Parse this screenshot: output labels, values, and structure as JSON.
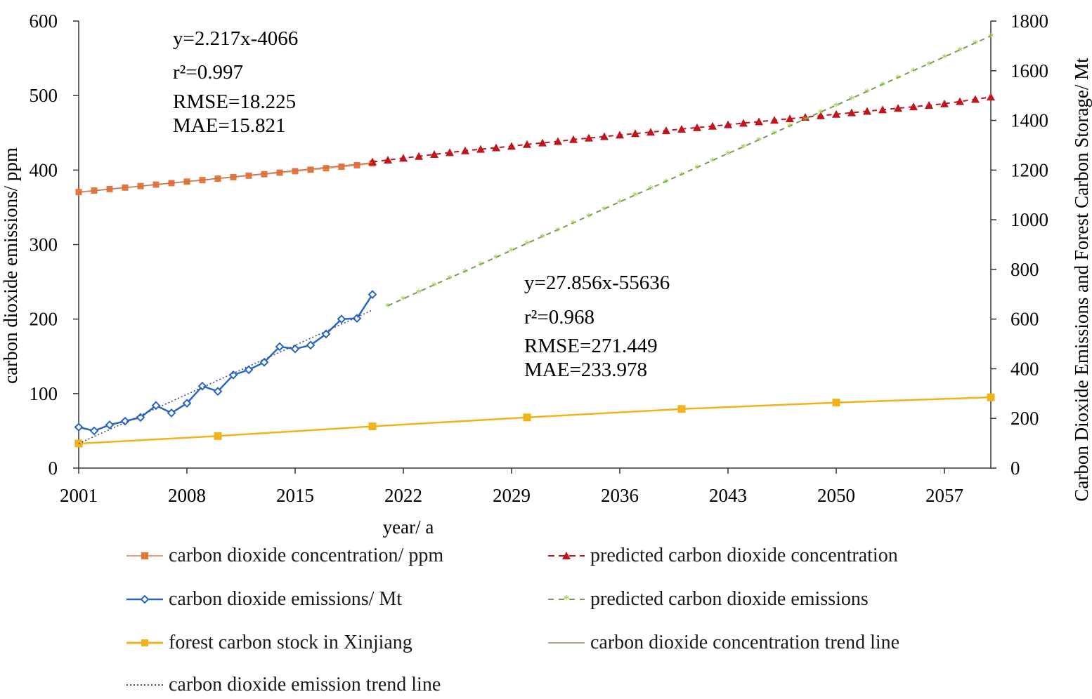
{
  "chart_data": {
    "type": "line",
    "xlabel": "year/ a",
    "ylabel_left": "carbon dioxide emissions/ ppm",
    "ylabel_right": "Carbon Dioxide Emissions and Forest Carbon Storage/ Mt",
    "x_ticks": [
      "2001",
      "2008",
      "2015",
      "2022",
      "2029",
      "2036",
      "2043",
      "2050",
      "2057"
    ],
    "x_tick_values": [
      2001,
      2008,
      2015,
      2022,
      2029,
      2036,
      2043,
      2050,
      2057
    ],
    "y_left_ticks": [
      "0",
      "100",
      "200",
      "300",
      "400",
      "500",
      "600"
    ],
    "y_right_ticks": [
      "0",
      "200",
      "400",
      "600",
      "800",
      "1000",
      "1200",
      "1400",
      "1600",
      "1800"
    ],
    "xlim": [
      2001,
      2060
    ],
    "ylim_left": [
      0,
      600
    ],
    "ylim_right": [
      0,
      1800
    ],
    "series": [
      {
        "name": "carbon dioxide concentration/ ppm",
        "axis": "left",
        "color": "#e8763a",
        "marker": "square",
        "x": [
          2001,
          2002,
          2003,
          2004,
          2005,
          2006,
          2007,
          2008,
          2009,
          2010,
          2011,
          2012,
          2013,
          2014,
          2015,
          2016,
          2017,
          2018,
          2019,
          2020
        ],
        "values": [
          370.5,
          372.5,
          374.5,
          376.5,
          378.5,
          380.5,
          382.5,
          384.5,
          386.5,
          388.5,
          390.5,
          392.5,
          394.5,
          396.5,
          398.5,
          400.5,
          402.5,
          404.5,
          406.5,
          409.0
        ]
      },
      {
        "name": "predicted carbon dioxide concentration",
        "axis": "left",
        "color": "#c0141e",
        "marker": "triangle",
        "dashed": true,
        "x": [
          2020,
          2021,
          2022,
          2023,
          2024,
          2025,
          2026,
          2027,
          2028,
          2029,
          2030,
          2031,
          2032,
          2033,
          2034,
          2035,
          2036,
          2037,
          2038,
          2039,
          2040,
          2041,
          2042,
          2043,
          2044,
          2045,
          2046,
          2047,
          2048,
          2049,
          2050,
          2051,
          2052,
          2053,
          2054,
          2055,
          2056,
          2057,
          2058,
          2059,
          2060
        ],
        "values": [
          411,
          413.5,
          416,
          418.5,
          421,
          423.5,
          426,
          428,
          430,
          432,
          434.5,
          436.5,
          438.5,
          441,
          443,
          445,
          447,
          449,
          451,
          453,
          455,
          457,
          459,
          461,
          463,
          465,
          467,
          469,
          471,
          473,
          475,
          477,
          479,
          481,
          483,
          485,
          487,
          489,
          492,
          495,
          498
        ]
      },
      {
        "name": "carbon dioxide emissions/ Mt",
        "axis": "left",
        "color": "#2b66c4",
        "marker": "diamond",
        "x": [
          2001,
          2002,
          2003,
          2004,
          2005,
          2006,
          2007,
          2008,
          2009,
          2010,
          2011,
          2012,
          2013,
          2014,
          2015,
          2016,
          2017,
          2018,
          2019,
          2020
        ],
        "values": [
          55,
          50,
          58,
          63,
          68,
          84,
          74,
          87,
          110,
          103,
          125,
          132,
          142,
          163,
          160,
          165,
          180,
          200,
          201,
          233
        ]
      },
      {
        "name": "predicted carbon dioxide emissions",
        "axis": "right",
        "color": "#8cc43c",
        "marker": "star",
        "dashed": true,
        "x": [
          2021,
          2022,
          2023,
          2024,
          2025,
          2026,
          2027,
          2028,
          2029,
          2030,
          2031,
          2032,
          2033,
          2034,
          2035,
          2036,
          2037,
          2038,
          2039,
          2040,
          2041,
          2042,
          2043,
          2044,
          2045,
          2046,
          2047,
          2048,
          2049,
          2050,
          2051,
          2052,
          2053,
          2054,
          2055,
          2056,
          2057,
          2058,
          2059,
          2060
        ],
        "values": [
          654,
          682,
          710,
          738,
          766,
          793,
          821,
          849,
          877,
          905,
          933,
          960,
          988,
          1016,
          1044,
          1072,
          1100,
          1127,
          1155,
          1183,
          1211,
          1239,
          1267,
          1294,
          1322,
          1350,
          1378,
          1406,
          1434,
          1461,
          1489,
          1517,
          1545,
          1573,
          1601,
          1628,
          1656,
          1684,
          1712,
          1740
        ]
      },
      {
        "name": "forest carbon stock in Xinjiang",
        "axis": "right",
        "color": "#f2b21c",
        "marker": "square",
        "x": [
          2001,
          2010,
          2020,
          2030,
          2040,
          2050,
          2060
        ],
        "values": [
          99,
          129,
          168,
          204,
          238,
          264,
          285
        ]
      },
      {
        "name": "carbon dioxide concentration trend line",
        "axis": "left",
        "color": "#b07a5a",
        "style": "trend",
        "equation": "y=2.217x-4066",
        "r2": "r²=0.997",
        "rmse": "RMSE=18.225",
        "mae": "MAE=15.821",
        "x": [
          2001,
          2020
        ],
        "values": [
          370,
          410
        ]
      },
      {
        "name": "carbon dioxide emission trend line",
        "axis": "left",
        "color": "#3a4a8a",
        "style": "trend",
        "equation": "y=27.856x-55636",
        "r2": "r²=0.968",
        "rmse": "RMSE=271.449",
        "mae": "MAE=233.978",
        "x": [
          2001,
          2020
        ],
        "values": [
          33,
          212
        ]
      }
    ]
  }
}
